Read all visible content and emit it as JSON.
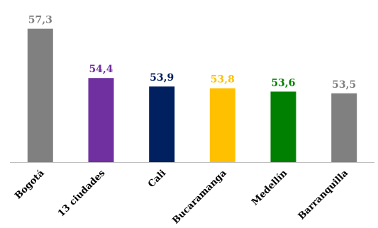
{
  "chart_data": {
    "type": "bar",
    "categories": [
      "Bogotá",
      "13 ciudades",
      "Cali",
      "Bucaramanga",
      "Medellín",
      "Barranquilla"
    ],
    "values": [
      57.3,
      54.4,
      53.9,
      53.8,
      53.6,
      53.5
    ],
    "value_labels": [
      "57,3",
      "54,4",
      "53,9",
      "53,8",
      "53,6",
      "53,5"
    ],
    "colors": [
      "#808080",
      "#7030A0",
      "#002060",
      "#FFC000",
      "#008000",
      "#808080"
    ],
    "label_colors": [
      "#808080",
      "#7030A0",
      "#002060",
      "#FFC000",
      "#008000",
      "#808080"
    ],
    "grid": false,
    "legend": "none"
  }
}
